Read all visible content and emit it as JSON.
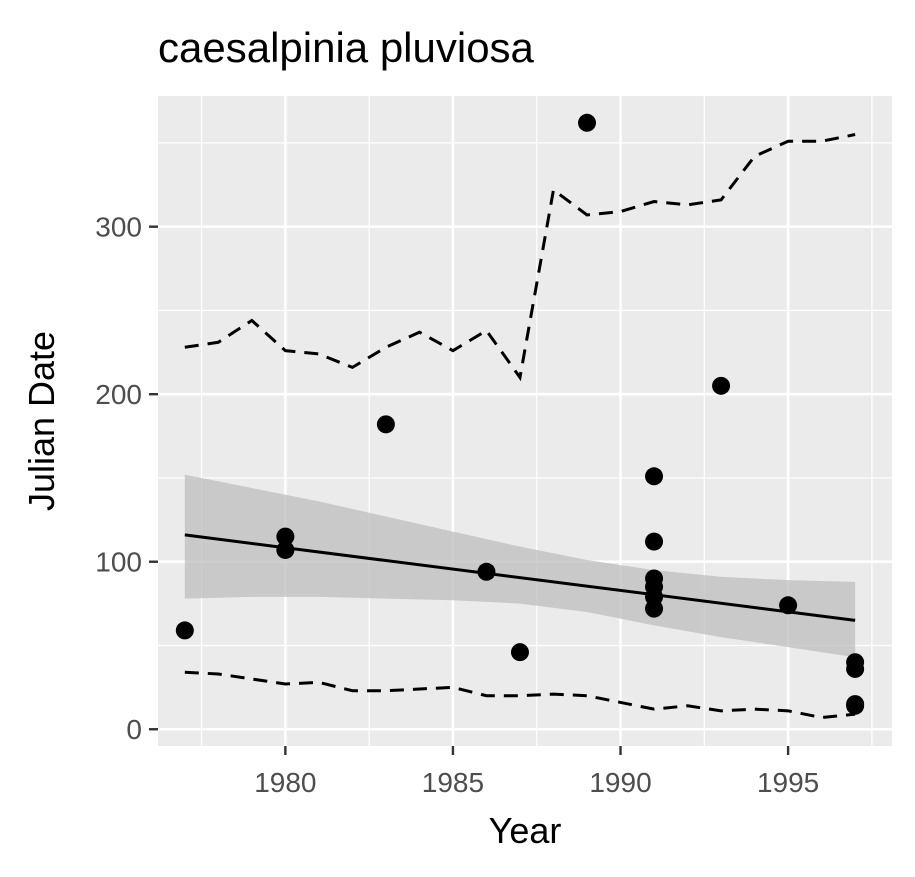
{
  "chart_data": {
    "type": "scatter",
    "title": "caesalpinia pluviosa",
    "xlabel": "Year",
    "ylabel": "Julian Date",
    "xlim": [
      1976.2,
      1998.1
    ],
    "ylim": [
      -10,
      378
    ],
    "x_ticks": [
      1980,
      1985,
      1990,
      1995
    ],
    "y_ticks": [
      0,
      100,
      200,
      300
    ],
    "grid": true,
    "legend": "none",
    "colors": {
      "panel_background": "#ebebeb",
      "grid_line": "#ffffff",
      "points": "#000000",
      "ribbon": "#bdbdbd",
      "tick_text": "#4d4d4d"
    },
    "points": [
      {
        "x": 1977,
        "y": 59
      },
      {
        "x": 1980,
        "y": 115
      },
      {
        "x": 1980,
        "y": 107
      },
      {
        "x": 1983,
        "y": 182
      },
      {
        "x": 1986,
        "y": 94
      },
      {
        "x": 1987,
        "y": 46
      },
      {
        "x": 1989,
        "y": 362
      },
      {
        "x": 1991,
        "y": 151
      },
      {
        "x": 1991,
        "y": 112
      },
      {
        "x": 1991,
        "y": 90
      },
      {
        "x": 1991,
        "y": 85
      },
      {
        "x": 1991,
        "y": 79
      },
      {
        "x": 1991,
        "y": 72
      },
      {
        "x": 1993,
        "y": 205
      },
      {
        "x": 1995,
        "y": 74
      },
      {
        "x": 1997,
        "y": 40
      },
      {
        "x": 1997,
        "y": 36
      },
      {
        "x": 1997,
        "y": 15
      },
      {
        "x": 1997,
        "y": 14
      }
    ],
    "trend_line": {
      "x": [
        1977,
        1997
      ],
      "y": [
        116,
        65
      ]
    },
    "confidence_band": {
      "x": [
        1977,
        1979,
        1981,
        1983,
        1985,
        1987,
        1989,
        1991,
        1993,
        1995,
        1997
      ],
      "upper": [
        152,
        144,
        136,
        127,
        118,
        109,
        101,
        95,
        91,
        89,
        88
      ],
      "lower": [
        78,
        79,
        79,
        78,
        77,
        75,
        70,
        62,
        55,
        49,
        43
      ]
    },
    "upper_quantile": {
      "x": [
        1977,
        1978,
        1979,
        1980,
        1981,
        1982,
        1983,
        1984,
        1985,
        1986,
        1987,
        1988,
        1989,
        1990,
        1991,
        1992,
        1993,
        1994,
        1995,
        1996,
        1997
      ],
      "y": [
        228,
        231,
        244,
        226,
        224,
        216,
        228,
        237,
        226,
        238,
        210,
        322,
        307,
        309,
        315,
        313,
        316,
        342,
        351,
        351,
        355
      ]
    },
    "lower_quantile": {
      "x": [
        1977,
        1978,
        1979,
        1980,
        1981,
        1982,
        1983,
        1984,
        1985,
        1986,
        1987,
        1988,
        1989,
        1990,
        1991,
        1992,
        1993,
        1994,
        1995,
        1996,
        1997
      ],
      "y": [
        34,
        33,
        30,
        27,
        28,
        23,
        23,
        24,
        25,
        20,
        20,
        21,
        20,
        16,
        12,
        14,
        11,
        12,
        11,
        7,
        9
      ]
    }
  }
}
